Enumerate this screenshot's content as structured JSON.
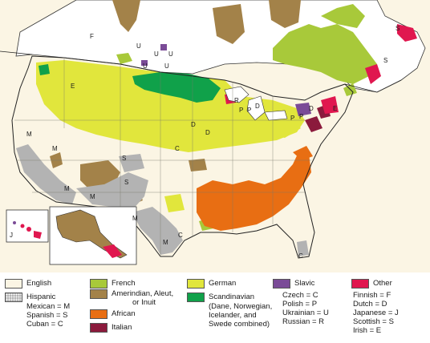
{
  "colors": {
    "english": "#fbf5e4",
    "hispanic": "#b3b3b3",
    "french": "#a8c93a",
    "amerindian": "#a38249",
    "african": "#e86e13",
    "italian": "#8b1a3c",
    "german": "#e1e63c",
    "scandinavian": "#10a14a",
    "slavic": "#7a4b97",
    "other": "#e0174f",
    "canada_land": "#ffffff",
    "water": "#ffffff",
    "border": "#222222"
  },
  "map": {
    "inset_codes": {
      "hawaii_j": "J"
    },
    "codes": {
      "mexican": "M",
      "spanish": "S",
      "cuban": "C",
      "czech": "C",
      "polish": "P",
      "ukrainian": "U",
      "russian": "R",
      "finnish": "F",
      "dutch": "D",
      "japanese": "J",
      "scottish": "S",
      "irish": "E"
    }
  },
  "legend": {
    "english": "English",
    "hispanic": "Hispanic",
    "hispanic_sub": [
      "Mexican = M",
      "Spanish = S",
      "Cuban = C"
    ],
    "french": "French",
    "amerindian": [
      "Amerindian, Aleut,",
      "or Inuit"
    ],
    "african": "African",
    "italian": "Italian",
    "german": "German",
    "scandinavian": "Scandinavian",
    "scandinavian_sub": [
      "(Dane, Norwegian,",
      "Icelander, and",
      "Swede combined)"
    ],
    "slavic": "Slavic",
    "slavic_sub": [
      "Czech = C",
      "Polish = P",
      "Ukrainian = U",
      "Russian = R"
    ],
    "other": "Other",
    "other_sub": [
      "Finnish = F",
      "Dutch = D",
      "Japanese = J",
      "Scottish = S",
      "Irish = E"
    ]
  }
}
